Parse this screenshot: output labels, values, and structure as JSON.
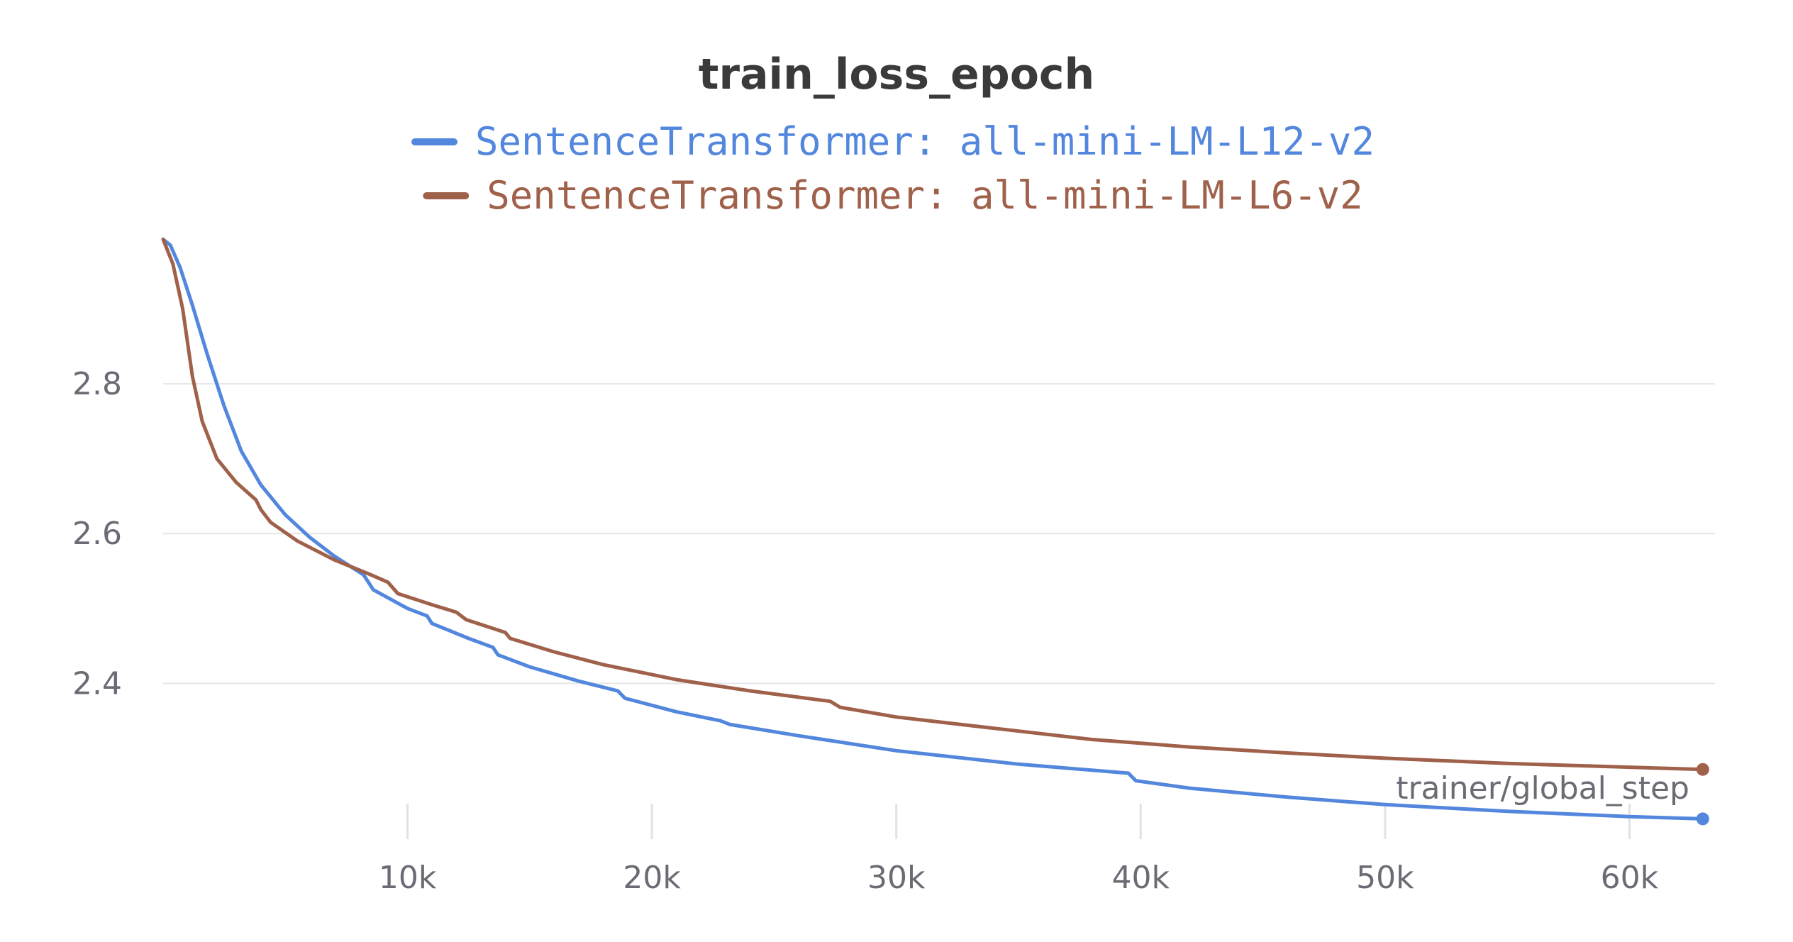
{
  "chart_data": {
    "type": "line",
    "title": "train_loss_epoch",
    "xlabel": "trainer/global_step",
    "ylabel": "",
    "xlim": [
      0,
      63500
    ],
    "ylim": [
      2.19,
      3.0
    ],
    "grid": true,
    "legend_position": "top-center",
    "x_ticks": [
      {
        "value": 10000,
        "label": "10k"
      },
      {
        "value": 20000,
        "label": "20k"
      },
      {
        "value": 30000,
        "label": "30k"
      },
      {
        "value": 40000,
        "label": "40k"
      },
      {
        "value": 50000,
        "label": "50k"
      },
      {
        "value": 60000,
        "label": "60k"
      }
    ],
    "y_ticks": [
      {
        "value": 2.4,
        "label": "2.4"
      },
      {
        "value": 2.6,
        "label": "2.6"
      },
      {
        "value": 2.8,
        "label": "2.8"
      }
    ],
    "series": [
      {
        "name": "SentenceTransformer: all-mini-LM-L12-v2",
        "color": "#5387dd",
        "points": [
          [
            0,
            2.993
          ],
          [
            300,
            2.985
          ],
          [
            700,
            2.955
          ],
          [
            1200,
            2.905
          ],
          [
            1800,
            2.84
          ],
          [
            2500,
            2.77
          ],
          [
            3200,
            2.71
          ],
          [
            4000,
            2.665
          ],
          [
            5000,
            2.625
          ],
          [
            6000,
            2.595
          ],
          [
            7000,
            2.57
          ],
          [
            8200,
            2.545
          ],
          [
            8400,
            2.535
          ],
          [
            8600,
            2.525
          ],
          [
            10000,
            2.5
          ],
          [
            10800,
            2.49
          ],
          [
            11000,
            2.48
          ],
          [
            12500,
            2.46
          ],
          [
            13500,
            2.448
          ],
          [
            13700,
            2.438
          ],
          [
            15000,
            2.422
          ],
          [
            17000,
            2.403
          ],
          [
            18600,
            2.39
          ],
          [
            18900,
            2.38
          ],
          [
            21000,
            2.362
          ],
          [
            22800,
            2.35
          ],
          [
            23200,
            2.345
          ],
          [
            26000,
            2.33
          ],
          [
            30000,
            2.31
          ],
          [
            35000,
            2.292
          ],
          [
            39500,
            2.28
          ],
          [
            39800,
            2.27
          ],
          [
            42000,
            2.26
          ],
          [
            46000,
            2.248
          ],
          [
            50000,
            2.238
          ],
          [
            55000,
            2.229
          ],
          [
            60000,
            2.222
          ],
          [
            63000,
            2.219
          ]
        ]
      },
      {
        "name": "SentenceTransformer: all-mini-LM-L6-v2",
        "color": "#a0614b",
        "points": [
          [
            0,
            2.993
          ],
          [
            400,
            2.96
          ],
          [
            800,
            2.9
          ],
          [
            1200,
            2.81
          ],
          [
            1600,
            2.75
          ],
          [
            2200,
            2.7
          ],
          [
            3000,
            2.668
          ],
          [
            3800,
            2.645
          ],
          [
            4000,
            2.632
          ],
          [
            4400,
            2.615
          ],
          [
            5500,
            2.59
          ],
          [
            7000,
            2.565
          ],
          [
            8500,
            2.545
          ],
          [
            9200,
            2.535
          ],
          [
            9600,
            2.52
          ],
          [
            11000,
            2.505
          ],
          [
            12000,
            2.495
          ],
          [
            12400,
            2.485
          ],
          [
            14000,
            2.468
          ],
          [
            14200,
            2.46
          ],
          [
            16000,
            2.442
          ],
          [
            18000,
            2.425
          ],
          [
            21000,
            2.405
          ],
          [
            24000,
            2.39
          ],
          [
            27300,
            2.376
          ],
          [
            27700,
            2.368
          ],
          [
            30000,
            2.355
          ],
          [
            34000,
            2.34
          ],
          [
            38000,
            2.325
          ],
          [
            42000,
            2.315
          ],
          [
            46000,
            2.307
          ],
          [
            50000,
            2.3
          ],
          [
            55000,
            2.293
          ],
          [
            60000,
            2.288
          ],
          [
            63000,
            2.285
          ]
        ]
      }
    ]
  }
}
